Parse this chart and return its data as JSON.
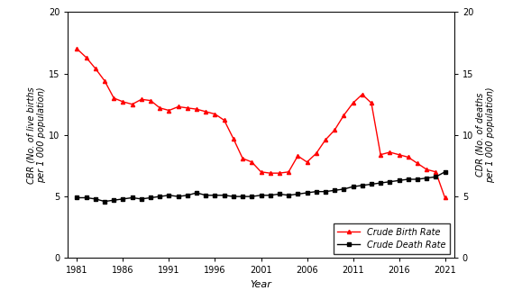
{
  "cbr_years": [
    1981,
    1982,
    1983,
    1984,
    1985,
    1986,
    1987,
    1988,
    1989,
    1990,
    1991,
    1992,
    1993,
    1994,
    1995,
    1996,
    1997,
    1998,
    1999,
    2000,
    2001,
    2002,
    2003,
    2004,
    2005,
    2006,
    2007,
    2008,
    2009,
    2010,
    2011,
    2012,
    2013,
    2014,
    2015,
    2016,
    2017,
    2018,
    2019,
    2020,
    2021
  ],
  "cbr_values": [
    17.0,
    16.3,
    15.4,
    14.4,
    13.0,
    12.7,
    12.5,
    12.9,
    12.8,
    12.2,
    12.0,
    12.3,
    12.2,
    12.1,
    11.9,
    11.7,
    11.2,
    9.7,
    8.1,
    7.8,
    7.0,
    6.9,
    6.9,
    7.0,
    8.3,
    7.8,
    8.5,
    9.6,
    10.4,
    11.6,
    12.6,
    13.3,
    12.6,
    8.4,
    8.6,
    8.4,
    8.2,
    7.7,
    7.2,
    7.0,
    4.9
  ],
  "cdr_years": [
    1981,
    1982,
    1983,
    1984,
    1985,
    1986,
    1987,
    1988,
    1989,
    1990,
    1991,
    1992,
    1993,
    1994,
    1995,
    1996,
    1997,
    1998,
    1999,
    2000,
    2001,
    2002,
    2003,
    2004,
    2005,
    2006,
    2007,
    2008,
    2009,
    2010,
    2011,
    2012,
    2013,
    2014,
    2015,
    2016,
    2017,
    2018,
    2019,
    2020,
    2021
  ],
  "cdr_values": [
    4.9,
    4.9,
    4.8,
    4.6,
    4.7,
    4.8,
    4.9,
    4.8,
    4.9,
    5.0,
    5.1,
    5.0,
    5.1,
    5.3,
    5.1,
    5.1,
    5.1,
    5.0,
    5.0,
    5.0,
    5.1,
    5.1,
    5.2,
    5.1,
    5.2,
    5.3,
    5.4,
    5.4,
    5.5,
    5.6,
    5.8,
    5.9,
    6.0,
    6.1,
    6.2,
    6.3,
    6.4,
    6.4,
    6.5,
    6.6,
    7.0
  ],
  "cbr_color": "#FF0000",
  "cdr_color": "#000000",
  "cbr_label": "Crude Birth Rate",
  "cdr_label": "Crude Death Rate",
  "xlabel": "Year",
  "ylabel_left": "CBR (No. of live births\nper 1 000 population)",
  "ylabel_right": "CDR (No. of deaths\nper 1 000 population)",
  "ylim": [
    0,
    20
  ],
  "yticks": [
    0,
    5,
    10,
    15,
    20
  ],
  "xticks": [
    1981,
    1986,
    1991,
    1996,
    2001,
    2006,
    2011,
    2016,
    2021
  ],
  "xlim": [
    1980,
    2022
  ],
  "background_color": "#FFFFFF",
  "tick_labelsize": 7,
  "axis_labelsize": 7,
  "xlabel_size": 8,
  "legend_fontsize": 7
}
